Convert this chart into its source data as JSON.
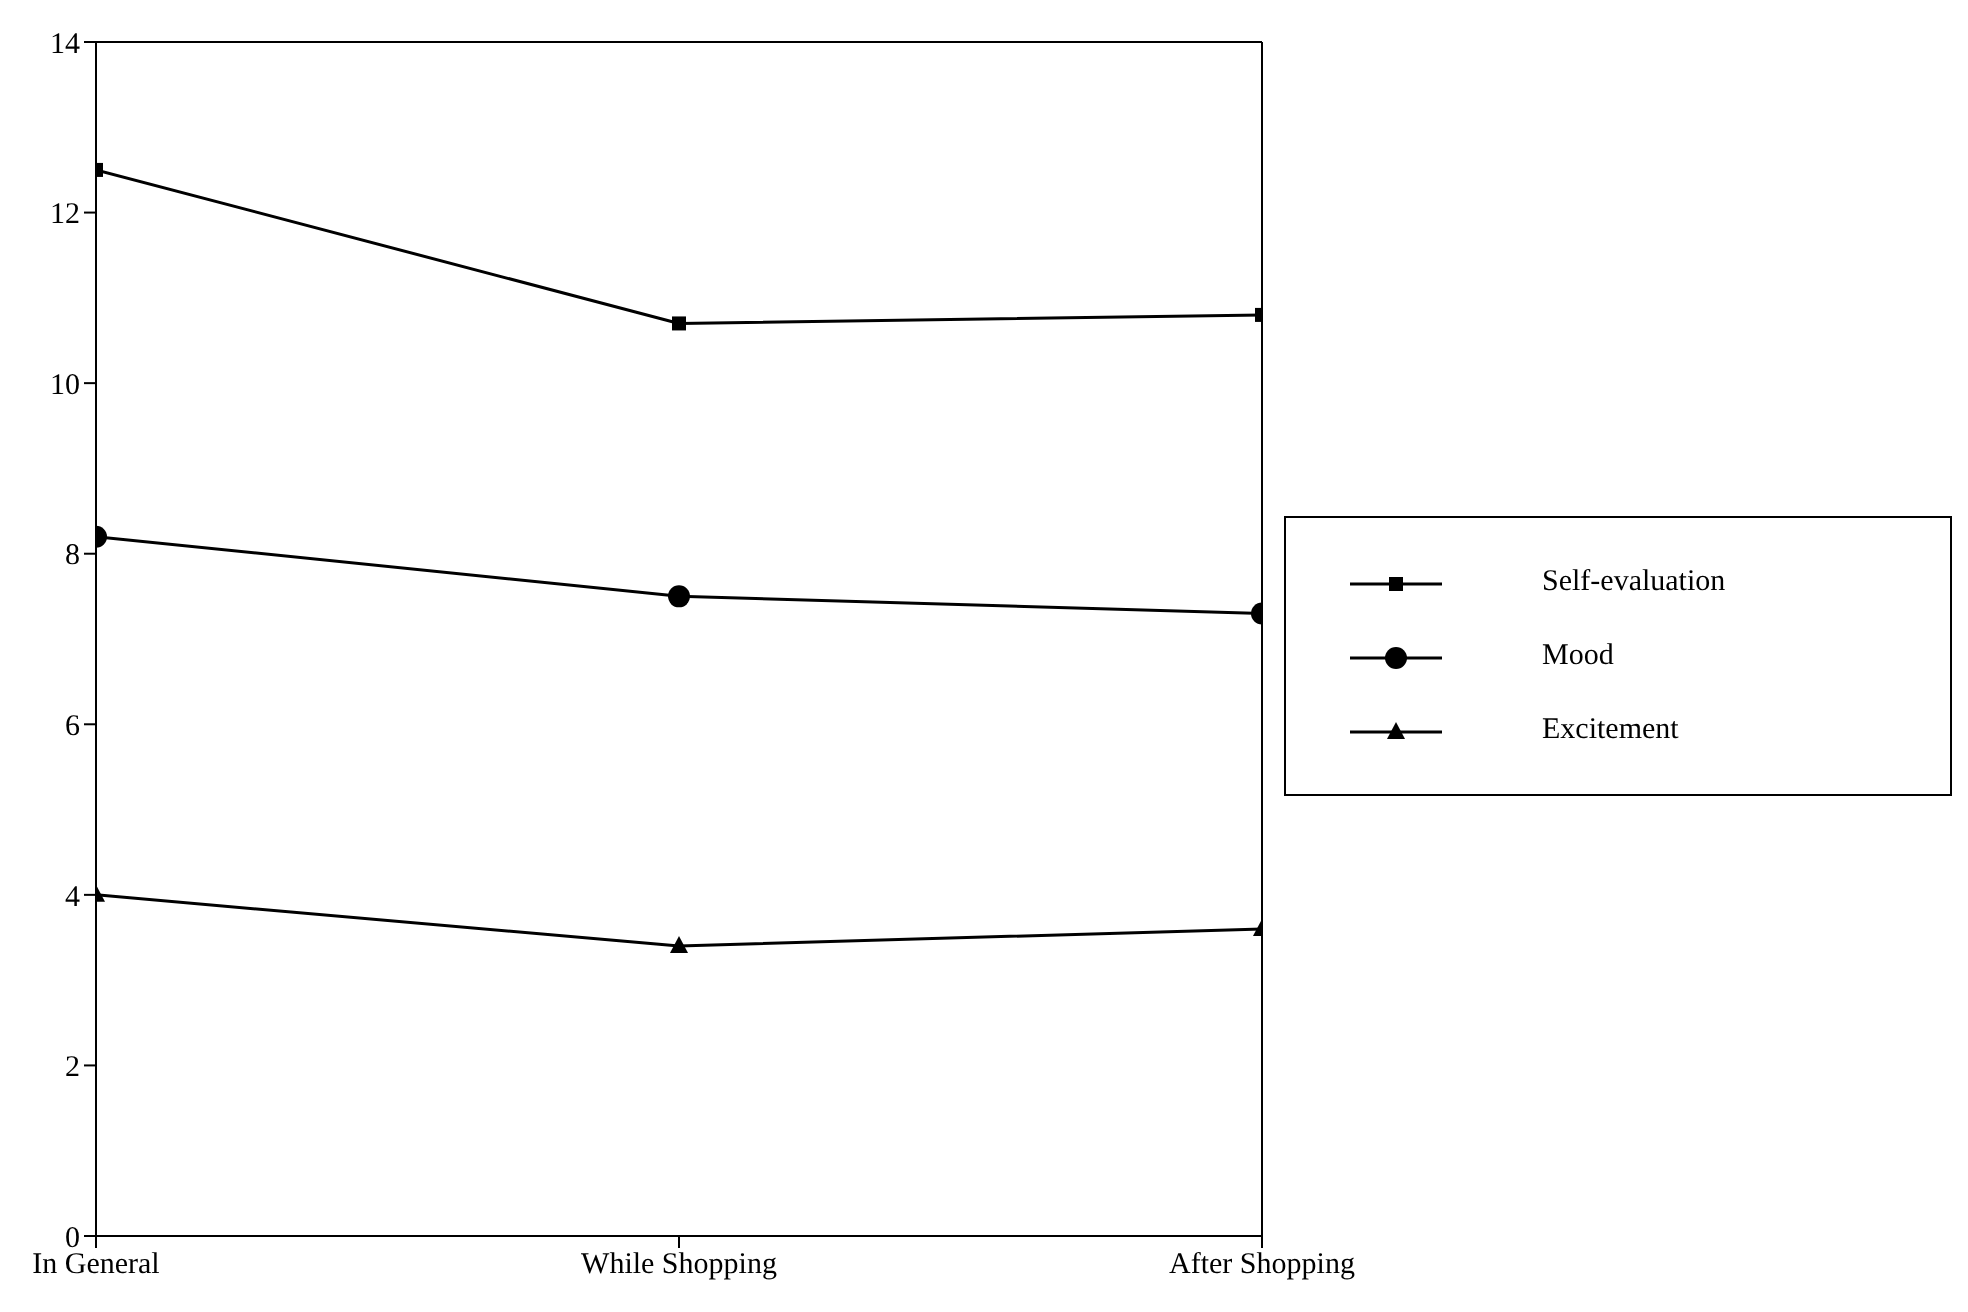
{
  "chart_data": {
    "type": "line",
    "categories": [
      "In General",
      "While Shopping",
      "After Shopping"
    ],
    "series": [
      {
        "name": "Self-evaluation",
        "color": "#000000",
        "marker": "square",
        "values": [
          12.5,
          10.7,
          10.8
        ]
      },
      {
        "name": "Mood",
        "color": "#000000",
        "marker": "circle",
        "values": [
          8.2,
          7.5,
          7.3
        ]
      },
      {
        "name": "Excitement",
        "color": "#000000",
        "marker": "triangle",
        "values": [
          4.0,
          3.4,
          3.6
        ]
      }
    ],
    "ylim": [
      0,
      14
    ],
    "yticks": [
      0,
      2,
      4,
      6,
      8,
      10,
      12,
      14
    ],
    "legend": "right"
  }
}
